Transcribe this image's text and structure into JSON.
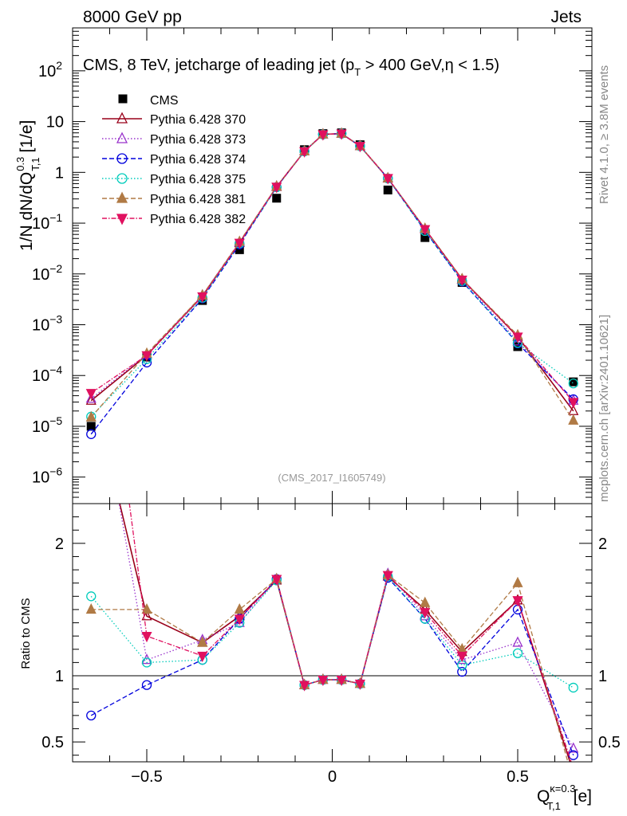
{
  "header": {
    "left": "8000 GeV pp",
    "right": "Jets"
  },
  "side_labels": {
    "rivet": "Rivet 4.1.0, ≥ 3.8M events",
    "mcplots": "mcplots.cern.ch [arXiv:2401.10621]"
  },
  "chart_data": {
    "type": "line",
    "title": "CMS, 8 TeV, jetcharge of leading jet (p_T > 400 GeV,η < 1.5)",
    "title_main": "CMS, 8 TeV, jetcharge of leading jet (p",
    "title_sub": "T",
    "title_tail": " > 400 GeV,η < 1.5)",
    "analysis_id": "(CMS_2017_I1605749)",
    "xlabel": "Q",
    "xlabel_sup": "κ=0.3",
    "xlabel_sub": "T,1",
    "xlabel_unit": " [e]",
    "ylabel": "1/N dN/dQ",
    "ylabel_sup": "0.3",
    "ylabel_sub": "T,1",
    "ylabel_unit": " [1/e]",
    "ratio_ylabel": "Ratio to CMS",
    "xlim": [
      -0.7,
      0.7
    ],
    "ylim_log": [
      3e-07,
      700
    ],
    "ratio_ylim": [
      0.35,
      2.3
    ],
    "x_tick_labels": [
      "−0.5",
      "0",
      "0.5"
    ],
    "x_tick_values": [
      -0.5,
      0,
      0.5
    ],
    "y_tick_labels": [
      {
        "v": 1e-06,
        "base": "10",
        "exp": "−6"
      },
      {
        "v": 1e-05,
        "base": "10",
        "exp": "−5"
      },
      {
        "v": 0.0001,
        "base": "10",
        "exp": "−4"
      },
      {
        "v": 0.001,
        "base": "10",
        "exp": "−3"
      },
      {
        "v": 0.01,
        "base": "10",
        "exp": "−2"
      },
      {
        "v": 0.1,
        "base": "10",
        "exp": "−1"
      },
      {
        "v": 1,
        "base": "1",
        "exp": ""
      },
      {
        "v": 10,
        "base": "10",
        "exp": ""
      },
      {
        "v": 100,
        "base": "10",
        "exp": "2"
      }
    ],
    "ratio_tick_labels": [
      {
        "v": 0.5,
        "label": "0.5"
      },
      {
        "v": 1,
        "label": "1"
      },
      {
        "v": 2,
        "label": "2"
      }
    ],
    "x": [
      -0.65,
      -0.5,
      -0.35,
      -0.25,
      -0.15,
      -0.075,
      -0.025,
      0.025,
      0.075,
      0.15,
      0.25,
      0.35,
      0.5,
      0.65
    ],
    "data": {
      "name": "CMS",
      "values": [
        1e-05,
        0.00023,
        0.003,
        0.03,
        0.31,
        2.8,
        5.8,
        6.0,
        3.5,
        0.45,
        0.052,
        0.0068,
        0.00037,
        7.5e-05
      ]
    },
    "series": [
      {
        "name": "Pythia 6.428 370",
        "color": "#99001a",
        "dash": "",
        "marker": "triangle-open",
        "values": [
          3.2e-05,
          0.00025,
          0.0037,
          0.041,
          0.52,
          2.6,
          5.6,
          5.8,
          3.3,
          0.76,
          0.077,
          0.0079,
          0.00058,
          2e-05
        ],
        "ratio": [
          3.2,
          1.45,
          1.25,
          1.45,
          1.72,
          0.93,
          0.97,
          0.97,
          0.94,
          1.75,
          1.5,
          1.18,
          1.57,
          0.27
        ]
      },
      {
        "name": "Pythia 6.428 373",
        "color": "#9933cc",
        "dash": "1.5,2.5",
        "marker": "triangle-open",
        "values": [
          3.5e-05,
          0.00026,
          0.0038,
          0.042,
          0.53,
          2.6,
          5.6,
          5.8,
          3.3,
          0.77,
          0.076,
          0.0077,
          0.00047,
          3.2e-05
        ],
        "ratio": [
          3.5,
          1.12,
          1.27,
          1.4,
          1.73,
          0.93,
          0.97,
          0.97,
          0.94,
          1.77,
          1.45,
          1.12,
          1.25,
          0.45
        ]
      },
      {
        "name": "Pythia 6.428 374",
        "color": "#0000dd",
        "dash": "6,3",
        "marker": "circle-open",
        "values": [
          7e-06,
          0.00018,
          0.0033,
          0.038,
          0.51,
          2.6,
          5.6,
          5.8,
          3.3,
          0.76,
          0.07,
          0.0071,
          0.00043,
          3.4e-05
        ],
        "ratio": [
          0.7,
          0.93,
          1.12,
          1.43,
          1.73,
          0.93,
          0.97,
          0.97,
          0.94,
          1.74,
          1.43,
          1.03,
          1.5,
          0.4
        ]
      },
      {
        "name": "Pythia 6.428 375",
        "color": "#00ccbb",
        "dash": "1.5,2.5",
        "marker": "circle-open",
        "values": [
          1.55e-05,
          0.00021,
          0.0034,
          0.04,
          0.51,
          2.6,
          5.6,
          5.8,
          3.3,
          0.76,
          0.07,
          0.0073,
          0.00044,
          7e-05
        ],
        "ratio": [
          1.6,
          1.1,
          1.12,
          1.4,
          1.72,
          0.93,
          0.97,
          0.97,
          0.94,
          1.75,
          1.43,
          1.08,
          1.17,
          0.91
        ]
      },
      {
        "name": "Pythia 6.428 381",
        "color": "#b07a45",
        "dash": "6,3",
        "marker": "triangle-filled",
        "values": [
          1.5e-05,
          0.00027,
          0.0038,
          0.043,
          0.53,
          2.6,
          5.6,
          5.8,
          3.3,
          0.77,
          0.078,
          0.0079,
          0.00062,
          1.3e-05
        ],
        "ratio": [
          1.5,
          1.5,
          1.25,
          1.5,
          1.73,
          0.93,
          0.97,
          0.97,
          0.94,
          1.76,
          1.55,
          1.2,
          1.7,
          0.2
        ]
      },
      {
        "name": "Pythia 6.428 382",
        "color": "#e0115f",
        "dash": "6,2,1.5,2",
        "marker": "triangle-down-filled",
        "values": [
          4.5e-05,
          0.00025,
          0.0036,
          0.041,
          0.52,
          2.6,
          5.6,
          5.8,
          3.3,
          0.77,
          0.076,
          0.0077,
          0.00058,
          3e-05
        ],
        "ratio": [
          4.5,
          1.3,
          1.15,
          1.43,
          1.73,
          0.93,
          0.97,
          0.97,
          0.94,
          1.76,
          1.48,
          1.15,
          1.57,
          0.3
        ]
      }
    ]
  }
}
